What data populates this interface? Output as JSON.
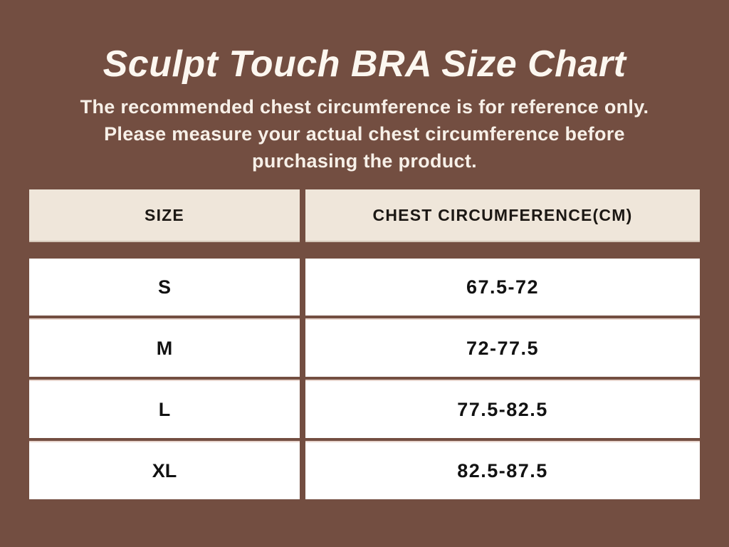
{
  "page": {
    "title": "Sculpt Touch BRA Size Chart",
    "subtitle_lines": [
      "The recommended chest circumference is for reference only.",
      "Please measure your actual chest circumference before",
      "purchasing the product."
    ]
  },
  "colors": {
    "background": "#734E41",
    "header_cell_bg": "#EFE6DA",
    "data_cell_bg": "#FFFFFF",
    "title_text": "#FCF7F0",
    "subtitle_text": "#F7F0E8",
    "cell_text": "#121212",
    "header_bottom_edge": "#D5C7B9",
    "row_top_edge": "#E8D6CE"
  },
  "table": {
    "headers": [
      "SIZE",
      "CHEST CIRCUMFERENCE(CM)"
    ],
    "rows": [
      [
        "S",
        "67.5-72"
      ],
      [
        "M",
        "72-77.5"
      ],
      [
        "L",
        "77.5-82.5"
      ],
      [
        "XL",
        "82.5-87.5"
      ]
    ]
  },
  "chart_data": {
    "type": "table",
    "title": "Sculpt Touch BRA Size Chart",
    "subtitle": "The recommended chest circumference is for reference only. Please measure your actual chest circumference before purchasing the product.",
    "columns": [
      "SIZE",
      "CHEST CIRCUMFERENCE(CM)"
    ],
    "rows": [
      {
        "size": "S",
        "chest_circumference_cm": "67.5-72"
      },
      {
        "size": "M",
        "chest_circumference_cm": "72-77.5"
      },
      {
        "size": "L",
        "chest_circumference_cm": "77.5-82.5"
      },
      {
        "size": "XL",
        "chest_circumference_cm": "82.5-87.5"
      }
    ]
  }
}
